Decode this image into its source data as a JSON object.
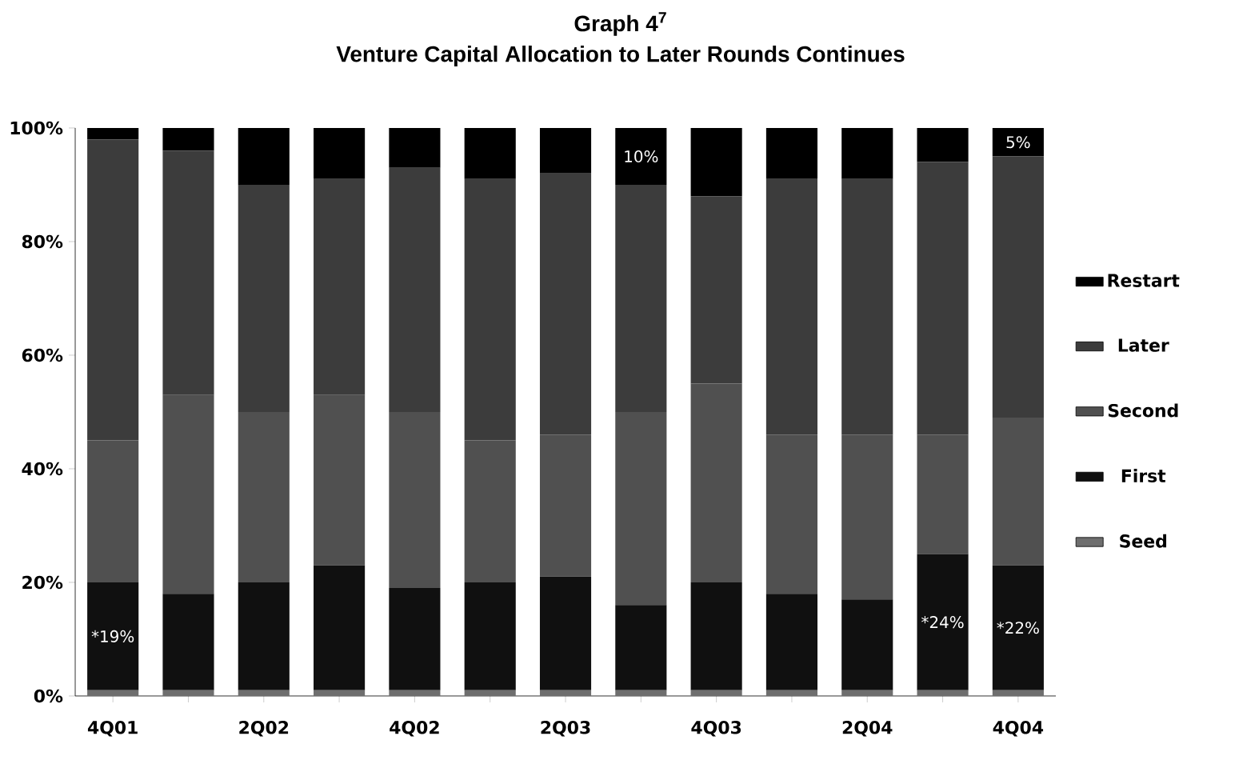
{
  "chart_data": {
    "type": "bar",
    "stacked": true,
    "title": "Graph 4$^{7}$",
    "subtitle": "Venture Capital Allocation to Later Rounds Continues",
    "categories": [
      "4Q01",
      null,
      "2Q02",
      null,
      "4Q02",
      null,
      "2Q03",
      null,
      "4Q03",
      null,
      "2Q04",
      null,
      "4Q04"
    ],
    "series": [
      {
        "name": "Seed",
        "color": "#6e6e6e",
        "values": [
          1,
          1,
          1,
          1,
          1,
          1,
          1,
          1,
          1,
          1,
          1,
          1,
          1
        ]
      },
      {
        "name": "First",
        "color": "#101010",
        "values": [
          19,
          17,
          19,
          22,
          18,
          19,
          20,
          15,
          19,
          17,
          16,
          24,
          22
        ],
        "value_labels": [
          "*19%",
          null,
          null,
          null,
          null,
          null,
          null,
          null,
          null,
          null,
          null,
          "*24%",
          "*22%"
        ]
      },
      {
        "name": "Second",
        "color": "#505050",
        "values": [
          25,
          35,
          30,
          30,
          31,
          25,
          25,
          34,
          35,
          28,
          29,
          21,
          26
        ]
      },
      {
        "name": "Later",
        "color": "#3c3c3c",
        "values": [
          53,
          43,
          40,
          38,
          43,
          46,
          46,
          40,
          33,
          45,
          45,
          48,
          46
        ]
      },
      {
        "name": "Restart",
        "color": "#000000",
        "values": [
          2,
          4,
          10,
          9,
          7,
          9,
          8,
          10,
          12,
          9,
          9,
          6,
          5
        ],
        "value_labels": [
          null,
          null,
          null,
          null,
          null,
          null,
          null,
          "10%",
          null,
          null,
          null,
          null,
          "5%"
        ]
      }
    ],
    "ylim": [
      0,
      100
    ],
    "yticks": [
      {
        "value": 0,
        "label": "0%"
      },
      {
        "value": 20,
        "label": "20%"
      },
      {
        "value": 40,
        "label": "40%"
      },
      {
        "value": 60,
        "label": "60%"
      },
      {
        "value": 80,
        "label": "80%"
      },
      {
        "value": 100,
        "label": "100%"
      }
    ],
    "legend": "right",
    "grid": false
  }
}
